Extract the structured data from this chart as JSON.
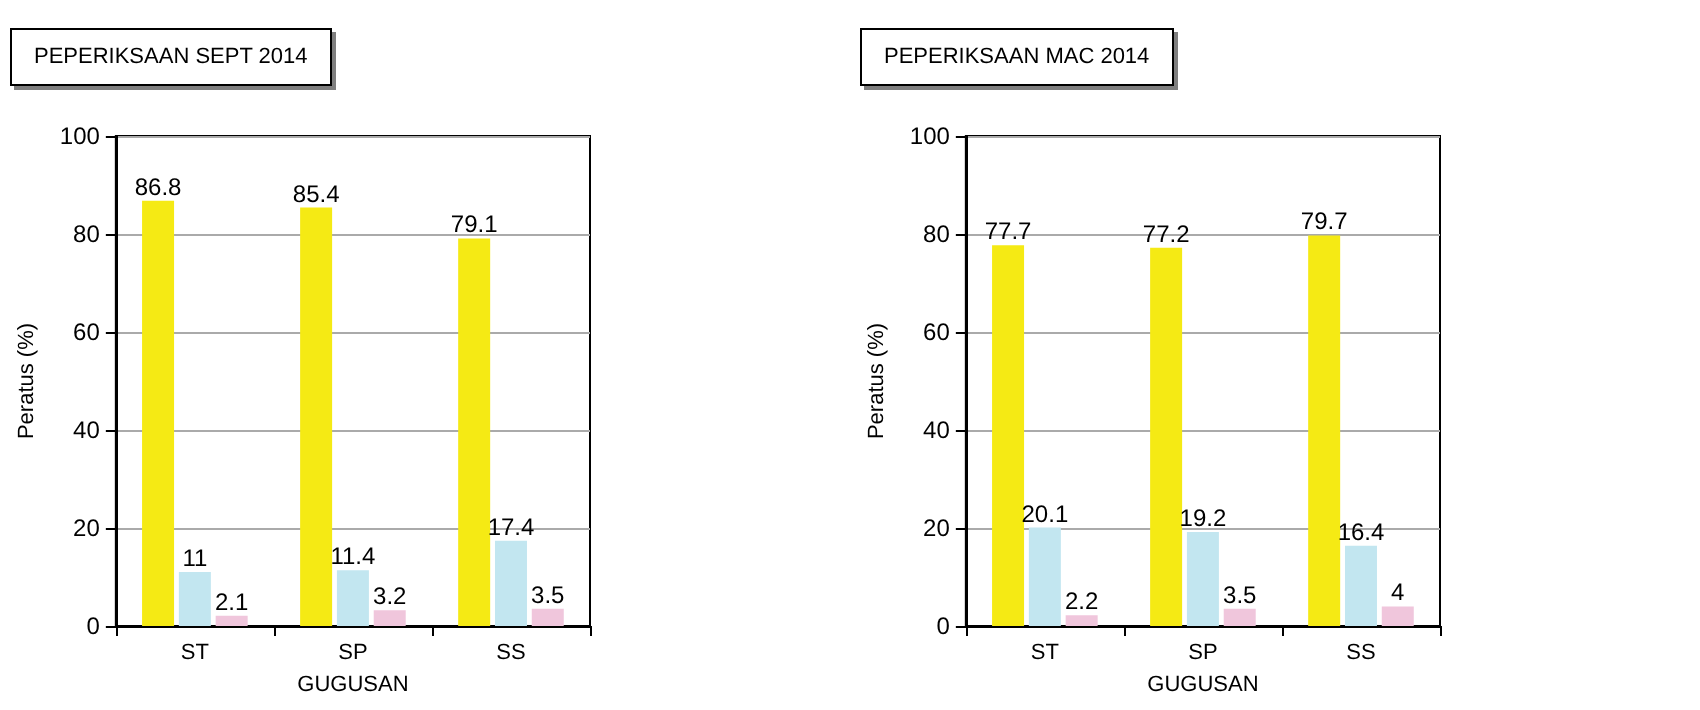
{
  "chart_data": [
    {
      "type": "bar",
      "title": "PEPERIKSAAN SEPT 2014",
      "xlabel": "GUGUSAN",
      "ylabel": "Peratus (%)",
      "categories": [
        "ST",
        "SP",
        "SS"
      ],
      "series": [
        {
          "color": "#f5ea14",
          "values": [
            86.8,
            85.4,
            79.1
          ]
        },
        {
          "color": "#c2e6f0",
          "values": [
            11,
            11.4,
            17.4
          ]
        },
        {
          "color": "#f0c6dc",
          "values": [
            2.1,
            3.2,
            3.5
          ]
        }
      ],
      "ylim": [
        0,
        100
      ],
      "yticks": [
        0,
        20,
        40,
        60,
        80,
        100
      ],
      "grid": "y",
      "data_labels": true
    },
    {
      "type": "bar",
      "title": "PEPERIKSAAN MAC 2014",
      "xlabel": "GUGUSAN",
      "ylabel": "Peratus (%)",
      "categories": [
        "ST",
        "SP",
        "SS"
      ],
      "series": [
        {
          "color": "#f5ea14",
          "values": [
            77.7,
            77.2,
            79.7
          ]
        },
        {
          "color": "#c2e6f0",
          "values": [
            20.1,
            19.2,
            16.4
          ]
        },
        {
          "color": "#f0c6dc",
          "values": [
            2.2,
            3.5,
            4
          ]
        }
      ],
      "ylim": [
        0,
        100
      ],
      "yticks": [
        0,
        20,
        40,
        60,
        80,
        100
      ],
      "grid": "y",
      "data_labels": true
    }
  ]
}
